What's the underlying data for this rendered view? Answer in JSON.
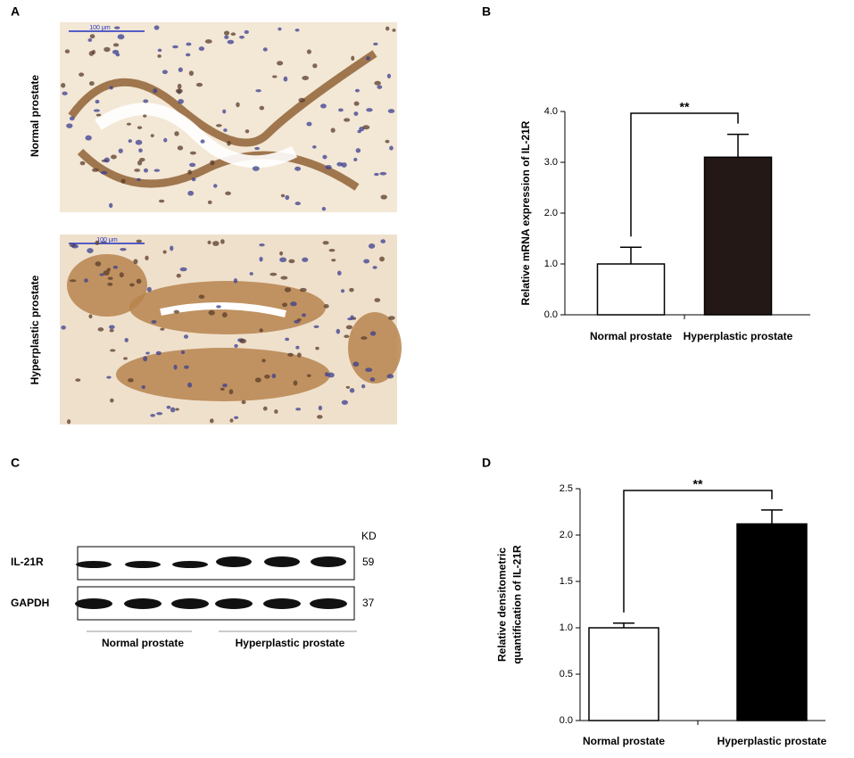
{
  "figure": {
    "panel_a": {
      "letter": "A",
      "images": [
        {
          "label": "Normal prostate",
          "scale_bar": "100 μm"
        },
        {
          "label": "Hyperplastic prostate",
          "scale_bar": "100 μm"
        }
      ]
    },
    "panel_c": {
      "letter": "C",
      "unit_header": "KD",
      "rows": [
        {
          "label": "IL-21R",
          "weight": 59
        },
        {
          "label": "GAPDH",
          "weight": 37
        }
      ],
      "groups": [
        "Normal prostate",
        "Hyperplastic prostate"
      ]
    }
  },
  "chart_data": [
    {
      "type": "bar",
      "panel_label": "B",
      "y_label": [
        "Relative mRNA expression of IL-21R"
      ],
      "categories": [
        "Normal prostate",
        "Hyperplastic prostate"
      ],
      "values": [
        1.0,
        3.1
      ],
      "errors": [
        0.33,
        0.45
      ],
      "colors": [
        "#ffffff",
        "#231815"
      ],
      "annotation": "**",
      "ylim": [
        0,
        4
      ],
      "yticks": [
        {
          "value": 0,
          "label": "0.0"
        },
        {
          "value": 1,
          "label": "1.0"
        },
        {
          "value": 2,
          "label": "2.0"
        },
        {
          "value": 3,
          "label": "3.0"
        },
        {
          "value": 4,
          "label": "4.0"
        }
      ]
    },
    {
      "type": "bar",
      "panel_label": "D",
      "y_label": [
        "Relative densitometric",
        "quantification of IL-21R"
      ],
      "categories": [
        "Normal prostate",
        "Hyperplastic prostate"
      ],
      "values": [
        1.0,
        2.12
      ],
      "errors": [
        0.05,
        0.15
      ],
      "colors": [
        "#ffffff",
        "#000000"
      ],
      "annotation": "**",
      "ylim": [
        0,
        2.5
      ],
      "yticks": [
        {
          "value": 0,
          "label": "0.0"
        },
        {
          "value": 0.5,
          "label": "0.5"
        },
        {
          "value": 1,
          "label": "1.0"
        },
        {
          "value": 1.5,
          "label": "1.5"
        },
        {
          "value": 2,
          "label": "2.0"
        },
        {
          "value": 2.5,
          "label": "2.5"
        }
      ]
    }
  ]
}
